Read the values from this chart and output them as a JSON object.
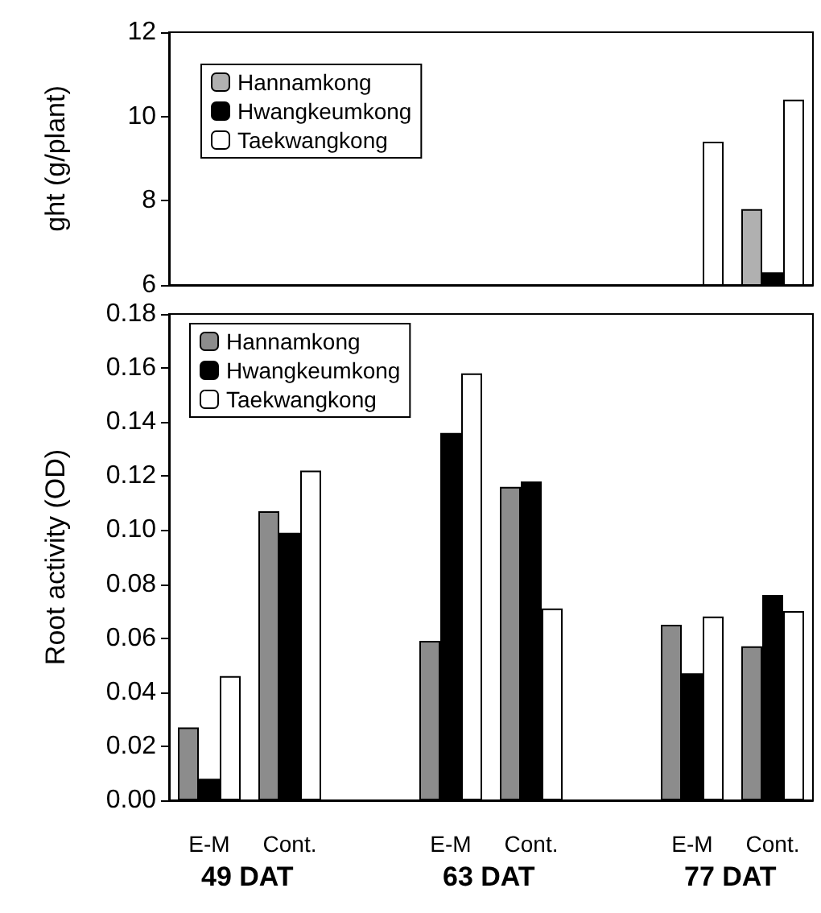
{
  "chart_data": [
    {
      "type": "bar",
      "ylabel": "ght (g/plant)",
      "categories": [
        null,
        null,
        null,
        null,
        null,
        null,
        null,
        null
      ],
      "series": [
        {
          "name": "Hannamkong",
          "color": "#b0b0b0",
          "values": [
            null,
            null,
            null,
            null,
            null,
            null,
            null,
            7.8
          ]
        },
        {
          "name": "Hwangkeumkong",
          "color": "#000000",
          "values": [
            null,
            null,
            null,
            null,
            null,
            null,
            null,
            6.3
          ]
        },
        {
          "name": "Taekwangkong",
          "color": "#ffffff",
          "values": [
            null,
            null,
            null,
            null,
            null,
            null,
            9.4,
            10.4
          ]
        }
      ],
      "ylim": [
        6,
        12
      ],
      "yticks": [
        6,
        8,
        10,
        12
      ],
      "tick_labels": "y",
      "grid": false,
      "legend": "top left"
    },
    {
      "type": "bar",
      "ylabel": "Root activity (OD)",
      "categories": [
        "E-M",
        "Cont.",
        null,
        "E-M",
        "Cont.",
        null,
        "E-M",
        "Cont."
      ],
      "series": [
        {
          "name": "Hannamkong",
          "color": "#8c8c8c",
          "values": [
            0.027,
            0.107,
            null,
            0.059,
            0.116,
            null,
            0.065,
            0.057
          ]
        },
        {
          "name": "Hwangkeumkong",
          "color": "#000000",
          "values": [
            0.008,
            0.099,
            null,
            0.136,
            0.118,
            null,
            0.047,
            0.076
          ]
        },
        {
          "name": "Taekwangkong",
          "color": "#ffffff",
          "values": [
            0.046,
            0.122,
            null,
            0.158,
            0.071,
            null,
            0.068,
            0.07
          ]
        }
      ],
      "ylim": [
        0,
        0.18
      ],
      "yticks": [
        {
          "value": 0,
          "label": "0.00"
        },
        {
          "value": 0.02,
          "label": "0.02"
        },
        {
          "value": 0.04,
          "label": "0.04"
        },
        {
          "value": 0.06,
          "label": "0.06"
        },
        {
          "value": 0.08,
          "label": "0.08"
        },
        {
          "value": 0.1,
          "label": "0.10"
        },
        {
          "value": 0.12,
          "label": "0.12"
        },
        {
          "value": 0.14,
          "label": "0.14"
        },
        {
          "value": 0.16,
          "label": "0.16"
        },
        {
          "value": 0.18,
          "label": "0.18"
        }
      ],
      "grid": false,
      "legend": "top left",
      "annotations": [
        "49 DAT",
        "63 DAT",
        "77 DAT"
      ]
    }
  ]
}
